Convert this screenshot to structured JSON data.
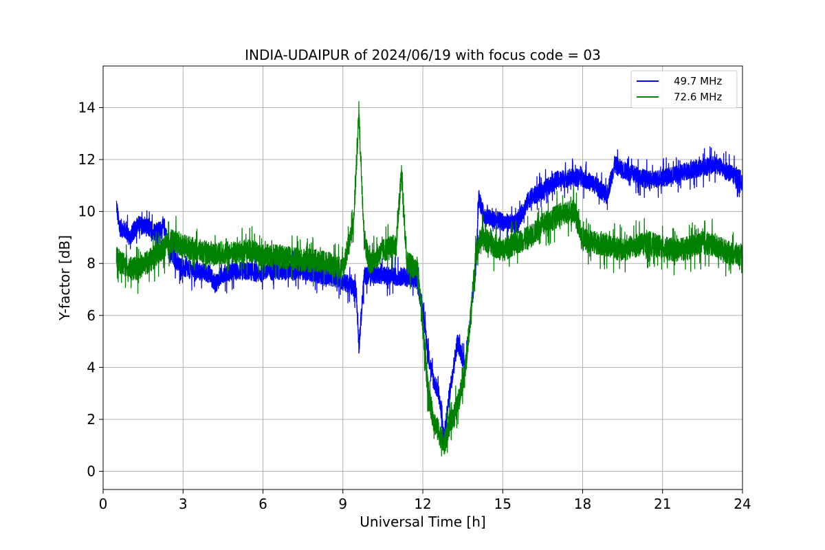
{
  "chart_data": {
    "type": "line",
    "title": "INDIA-UDAIPUR of 2024/06/19 with focus code = 03",
    "xlabel": "Universal Time [h]",
    "ylabel": "Y-factor [dB]",
    "xlim": [
      0,
      24
    ],
    "ylim": [
      -0.7,
      15.6
    ],
    "x_ticks": [
      0,
      3,
      6,
      9,
      12,
      15,
      18,
      21,
      24
    ],
    "y_ticks": [
      0,
      2,
      4,
      6,
      8,
      10,
      12,
      14
    ],
    "grid": true,
    "legend_position": "top-right",
    "series": [
      {
        "name": "49.7 MHz",
        "color": "#0000ff",
        "x": [
          0.5,
          0.6,
          0.8,
          1.0,
          1.3,
          1.6,
          2.0,
          2.3,
          2.5,
          2.8,
          3.0,
          3.5,
          4.0,
          4.2,
          4.5,
          5.0,
          5.5,
          5.9,
          6.0,
          6.5,
          7.0,
          7.5,
          8.0,
          8.5,
          8.8,
          9.2,
          9.5,
          9.6,
          9.8,
          10.2,
          10.8,
          11.3,
          11.8,
          12.0,
          12.2,
          12.4,
          12.6,
          12.8,
          13.0,
          13.3,
          13.6,
          13.8,
          14.0,
          14.1,
          14.3,
          14.6,
          15.0,
          15.5,
          16.0,
          16.5,
          17.0,
          17.5,
          18.0,
          18.5,
          18.9,
          19.2,
          19.5,
          20.0,
          20.5,
          21.0,
          21.5,
          22.0,
          22.5,
          23.0,
          23.5,
          24.0
        ],
        "values": [
          10.3,
          9.4,
          9.3,
          9.0,
          9.5,
          9.4,
          9.2,
          9.4,
          8.4,
          8.0,
          7.8,
          7.7,
          7.6,
          7.2,
          7.6,
          7.7,
          7.7,
          7.6,
          7.7,
          7.7,
          7.7,
          7.7,
          7.6,
          7.5,
          7.4,
          7.2,
          7.0,
          4.8,
          7.5,
          7.6,
          7.5,
          7.5,
          7.3,
          6.2,
          4.5,
          3.5,
          3.0,
          1.2,
          3.0,
          5.0,
          4.0,
          6.0,
          8.0,
          10.5,
          9.8,
          9.7,
          9.6,
          9.5,
          10.5,
          10.8,
          11.2,
          11.3,
          11.3,
          11.0,
          10.6,
          11.8,
          11.6,
          11.4,
          11.2,
          11.3,
          11.4,
          11.6,
          11.7,
          11.8,
          11.5,
          11.2
        ]
      },
      {
        "name": "72.6 MHz",
        "color": "#008000",
        "x": [
          0.5,
          0.7,
          1.0,
          1.3,
          1.6,
          2.0,
          2.3,
          2.6,
          3.0,
          3.5,
          4.0,
          4.5,
          5.0,
          5.5,
          5.9,
          6.0,
          6.5,
          7.0,
          7.5,
          8.0,
          8.5,
          9.0,
          9.4,
          9.6,
          9.8,
          10.0,
          10.5,
          11.0,
          11.2,
          11.4,
          11.8,
          12.0,
          12.2,
          12.4,
          12.6,
          12.8,
          13.0,
          13.3,
          13.6,
          13.8,
          14.0,
          14.2,
          14.5,
          15.0,
          15.5,
          16.0,
          16.5,
          17.0,
          17.5,
          17.7,
          18.0,
          18.5,
          19.0,
          19.5,
          20.0,
          20.5,
          21.0,
          21.5,
          22.0,
          22.5,
          23.0,
          23.5,
          24.0
        ],
        "values": [
          8.2,
          8.0,
          7.8,
          7.8,
          8.0,
          8.3,
          8.6,
          8.9,
          8.7,
          8.5,
          8.4,
          8.4,
          8.4,
          8.5,
          8.3,
          8.3,
          8.3,
          8.2,
          8.1,
          8.1,
          8.0,
          7.8,
          9.5,
          13.8,
          9.0,
          8.0,
          8.5,
          8.7,
          11.5,
          8.0,
          7.8,
          5.5,
          3.0,
          2.0,
          1.5,
          1.0,
          1.8,
          2.5,
          4.0,
          6.0,
          8.5,
          9.0,
          8.8,
          8.5,
          8.8,
          9.0,
          9.5,
          9.8,
          10.0,
          10.0,
          8.9,
          8.8,
          8.7,
          8.5,
          8.7,
          8.8,
          8.6,
          8.5,
          8.6,
          8.8,
          8.7,
          8.4,
          8.3
        ]
      }
    ]
  }
}
